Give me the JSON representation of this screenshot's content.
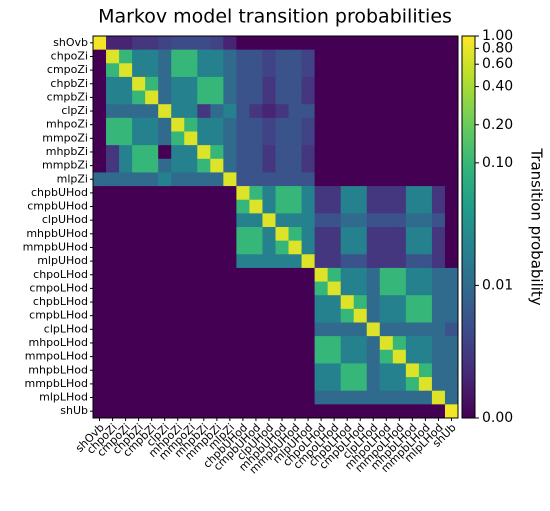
{
  "chart_data": {
    "type": "heatmap",
    "title": "Markov model transition probabilities",
    "categories": [
      "shOvb",
      "chpoZi",
      "cmpoZi",
      "chpbZi",
      "cmpbZi",
      "clpZi",
      "mhpoZi",
      "mmpoZi",
      "mhpbZi",
      "mmpbZi",
      "mlpZi",
      "chpbUHod",
      "cmpbUHod",
      "clpUHod",
      "mhpbUHod",
      "mmpbUHod",
      "mlpUHod",
      "chpoLHod",
      "cmpoLHod",
      "chpbLHod",
      "cmpbLHod",
      "clpLHod",
      "mhpoLHod",
      "mmpoLHod",
      "mhpbLHod",
      "mmpbLHod",
      "mlpLHod",
      "shUb"
    ],
    "values": [
      [
        0.9,
        0.001,
        0.001,
        0.002,
        0.002,
        0.003,
        0.004,
        0.004,
        0.004,
        0.003,
        0.001,
        0,
        0,
        0,
        0,
        0,
        0,
        0,
        0,
        0,
        0,
        0,
        0,
        0,
        0,
        0,
        0,
        0
      ],
      [
        0,
        0.7,
        0.1,
        0.02,
        0.02,
        0.01,
        0.1,
        0.1,
        0.02,
        0.02,
        0.01,
        0.005,
        0.005,
        0.003,
        0.005,
        0.005,
        0.003,
        0,
        0,
        0,
        0,
        0,
        0,
        0,
        0,
        0,
        0,
        0
      ],
      [
        0,
        0.1,
        0.7,
        0.02,
        0.02,
        0.01,
        0.1,
        0.1,
        0.02,
        0.02,
        0.01,
        0.005,
        0.005,
        0.003,
        0.005,
        0.005,
        0.003,
        0,
        0,
        0,
        0,
        0,
        0,
        0,
        0,
        0,
        0,
        0
      ],
      [
        0,
        0.02,
        0.02,
        0.7,
        0.1,
        0.01,
        0.02,
        0.02,
        0.1,
        0.1,
        0.01,
        0.005,
        0.005,
        0.002,
        0.005,
        0.005,
        0.002,
        0,
        0,
        0,
        0,
        0,
        0,
        0,
        0,
        0,
        0,
        0
      ],
      [
        0,
        0.02,
        0.02,
        0.1,
        0.7,
        0.01,
        0.02,
        0.02,
        0.1,
        0.1,
        0.01,
        0.005,
        0.005,
        0.002,
        0.005,
        0.005,
        0.002,
        0,
        0,
        0,
        0,
        0,
        0,
        0,
        0,
        0,
        0,
        0
      ],
      [
        0,
        0.01,
        0.01,
        0.01,
        0.01,
        0.7,
        0.02,
        0.02,
        0.002,
        0.01,
        0.02,
        0.005,
        0.002,
        0.001,
        0.002,
        0.005,
        0.005,
        0,
        0,
        0,
        0,
        0,
        0,
        0,
        0,
        0,
        0,
        0
      ],
      [
        0,
        0.1,
        0.1,
        0.02,
        0.02,
        0.01,
        0.7,
        0.1,
        0.02,
        0.02,
        0.01,
        0.005,
        0.005,
        0.003,
        0.005,
        0.005,
        0.003,
        0,
        0,
        0,
        0,
        0,
        0,
        0,
        0,
        0,
        0,
        0
      ],
      [
        0,
        0.1,
        0.1,
        0.02,
        0.02,
        0.01,
        0.1,
        0.7,
        0.02,
        0.02,
        0.01,
        0.005,
        0.005,
        0.003,
        0.005,
        0.005,
        0.003,
        0,
        0,
        0,
        0,
        0,
        0,
        0,
        0,
        0,
        0,
        0
      ],
      [
        0,
        0.002,
        0.02,
        0.1,
        0.1,
        0,
        0.02,
        0.02,
        0.7,
        0.1,
        0.01,
        0.005,
        0.005,
        0.002,
        0.005,
        0.005,
        0.002,
        0,
        0,
        0,
        0,
        0,
        0,
        0,
        0,
        0,
        0,
        0
      ],
      [
        0,
        0.002,
        0.02,
        0.1,
        0.1,
        0.01,
        0.02,
        0.02,
        0.1,
        0.7,
        0.01,
        0.005,
        0.005,
        0.002,
        0.005,
        0.005,
        0.002,
        0,
        0,
        0,
        0,
        0,
        0,
        0,
        0,
        0,
        0,
        0
      ],
      [
        0.01,
        0.01,
        0.01,
        0.01,
        0.01,
        0.02,
        0.01,
        0.01,
        0.01,
        0.01,
        0.7,
        0.005,
        0.005,
        0.005,
        0.005,
        0.005,
        0.005,
        0,
        0,
        0,
        0,
        0,
        0,
        0,
        0,
        0,
        0,
        0
      ],
      [
        0,
        0,
        0,
        0,
        0,
        0,
        0,
        0,
        0,
        0,
        0,
        0.7,
        0.1,
        0.02,
        0.1,
        0.1,
        0.02,
        0.002,
        0.002,
        0.02,
        0.02,
        0.002,
        0.002,
        0.002,
        0.02,
        0.02,
        0.002,
        0
      ],
      [
        0,
        0,
        0,
        0,
        0,
        0,
        0,
        0,
        0,
        0,
        0,
        0.1,
        0.7,
        0.02,
        0.1,
        0.1,
        0.02,
        0.002,
        0.002,
        0.02,
        0.02,
        0.002,
        0.002,
        0.002,
        0.02,
        0.02,
        0.002,
        0
      ],
      [
        0,
        0,
        0,
        0,
        0,
        0,
        0,
        0,
        0,
        0,
        0,
        0.02,
        0.02,
        0.7,
        0.02,
        0.02,
        0.02,
        0.005,
        0.005,
        0.01,
        0.01,
        0.005,
        0.005,
        0.005,
        0.01,
        0.01,
        0.005,
        0
      ],
      [
        0,
        0,
        0,
        0,
        0,
        0,
        0,
        0,
        0,
        0,
        0,
        0.1,
        0.1,
        0.02,
        0.7,
        0.1,
        0.02,
        0.002,
        0.002,
        0.02,
        0.02,
        0.002,
        0.002,
        0.002,
        0.02,
        0.02,
        0.002,
        0
      ],
      [
        0,
        0,
        0,
        0,
        0,
        0,
        0,
        0,
        0,
        0,
        0,
        0.1,
        0.1,
        0.02,
        0.1,
        0.7,
        0.02,
        0.002,
        0.002,
        0.02,
        0.02,
        0.002,
        0.002,
        0.002,
        0.02,
        0.02,
        0.002,
        0
      ],
      [
        0,
        0,
        0,
        0,
        0,
        0,
        0,
        0,
        0,
        0,
        0,
        0.02,
        0.02,
        0.02,
        0.02,
        0.02,
        0.7,
        0.002,
        0.002,
        0.005,
        0.005,
        0.002,
        0.002,
        0.002,
        0.005,
        0.005,
        0.002,
        0
      ],
      [
        0,
        0,
        0,
        0,
        0,
        0,
        0,
        0,
        0,
        0,
        0,
        0,
        0,
        0,
        0,
        0,
        0,
        0.7,
        0.1,
        0.02,
        0.02,
        0.01,
        0.1,
        0.1,
        0.02,
        0.02,
        0.01,
        0.01
      ],
      [
        0,
        0,
        0,
        0,
        0,
        0,
        0,
        0,
        0,
        0,
        0,
        0,
        0,
        0,
        0,
        0,
        0,
        0.1,
        0.7,
        0.02,
        0.02,
        0.01,
        0.1,
        0.1,
        0.02,
        0.02,
        0.01,
        0.01
      ],
      [
        0,
        0,
        0,
        0,
        0,
        0,
        0,
        0,
        0,
        0,
        0,
        0,
        0,
        0,
        0,
        0,
        0,
        0.02,
        0.02,
        0.7,
        0.1,
        0.01,
        0.02,
        0.02,
        0.1,
        0.1,
        0.01,
        0.01
      ],
      [
        0,
        0,
        0,
        0,
        0,
        0,
        0,
        0,
        0,
        0,
        0,
        0,
        0,
        0,
        0,
        0,
        0,
        0.02,
        0.02,
        0.1,
        0.7,
        0.01,
        0.02,
        0.02,
        0.1,
        0.1,
        0.01,
        0.01
      ],
      [
        0,
        0,
        0,
        0,
        0,
        0,
        0,
        0,
        0,
        0,
        0,
        0,
        0,
        0,
        0,
        0,
        0,
        0.01,
        0.01,
        0.01,
        0.01,
        0.7,
        0.01,
        0.01,
        0.01,
        0.01,
        0.01,
        0.005
      ],
      [
        0,
        0,
        0,
        0,
        0,
        0,
        0,
        0,
        0,
        0,
        0,
        0,
        0,
        0,
        0,
        0,
        0,
        0.1,
        0.1,
        0.02,
        0.02,
        0.01,
        0.7,
        0.1,
        0.02,
        0.02,
        0.01,
        0.01
      ],
      [
        0,
        0,
        0,
        0,
        0,
        0,
        0,
        0,
        0,
        0,
        0,
        0,
        0,
        0,
        0,
        0,
        0,
        0.1,
        0.1,
        0.02,
        0.02,
        0.01,
        0.1,
        0.7,
        0.02,
        0.02,
        0.01,
        0.01
      ],
      [
        0,
        0,
        0,
        0,
        0,
        0,
        0,
        0,
        0,
        0,
        0,
        0,
        0,
        0,
        0,
        0,
        0,
        0.02,
        0.02,
        0.1,
        0.1,
        0.01,
        0.02,
        0.02,
        0.7,
        0.1,
        0.01,
        0.01
      ],
      [
        0,
        0,
        0,
        0,
        0,
        0,
        0,
        0,
        0,
        0,
        0,
        0,
        0,
        0,
        0,
        0,
        0,
        0.02,
        0.02,
        0.1,
        0.1,
        0.01,
        0.02,
        0.02,
        0.1,
        0.7,
        0.01,
        0.01
      ],
      [
        0,
        0,
        0,
        0,
        0,
        0,
        0,
        0,
        0,
        0,
        0,
        0,
        0,
        0,
        0,
        0,
        0,
        0.01,
        0.01,
        0.01,
        0.01,
        0.01,
        0.01,
        0.01,
        0.01,
        0.01,
        0.7,
        0.01
      ],
      [
        0,
        0,
        0,
        0,
        0,
        0,
        0,
        0,
        0,
        0,
        0,
        0,
        0,
        0,
        0,
        0,
        0,
        0,
        0,
        0,
        0,
        0,
        0,
        0,
        0,
        0,
        0,
        0.9
      ]
    ],
    "colormap": "viridis",
    "norm": "symlog",
    "linthresh": 0.001,
    "colorbar": {
      "label": "Transition probability",
      "lim": [
        0,
        1
      ],
      "ticks": [
        {
          "value": 0,
          "label": "0.00"
        },
        0.01,
        {
          "value": 0.1,
          "label": "0.10"
        },
        {
          "value": 0.2,
          "label": "0.20"
        },
        {
          "value": 0.4,
          "label": "0.40"
        },
        {
          "value": 0.6,
          "label": "0.60"
        },
        {
          "value": 0.8,
          "label": "0.80"
        },
        {
          "value": 1,
          "label": "1.00"
        }
      ]
    }
  }
}
